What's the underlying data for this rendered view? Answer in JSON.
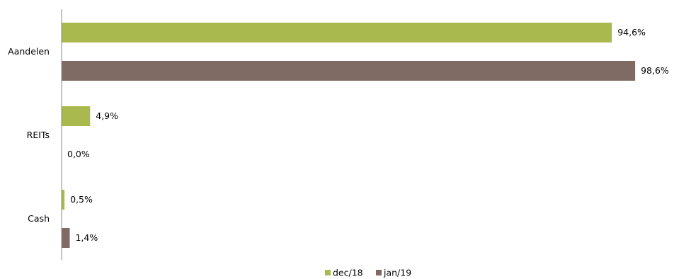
{
  "chart_data": {
    "type": "bar",
    "orientation": "horizontal",
    "categories": [
      "Aandelen",
      "REITs",
      "Cash"
    ],
    "series": [
      {
        "name": "dec/18",
        "color": "#a9b94e",
        "values": [
          94.6,
          4.9,
          0.5
        ],
        "labels": [
          "94,6%",
          "4,9%",
          "0,5%"
        ]
      },
      {
        "name": "jan/19",
        "color": "#7f6b64",
        "values": [
          98.6,
          0.0,
          1.4
        ],
        "labels": [
          "98,6%",
          "0,0%",
          "1,4%"
        ]
      }
    ],
    "xlim": [
      0,
      100
    ],
    "grid": false,
    "legend": "bottom-center",
    "title": "",
    "xlabel": "",
    "ylabel": ""
  }
}
